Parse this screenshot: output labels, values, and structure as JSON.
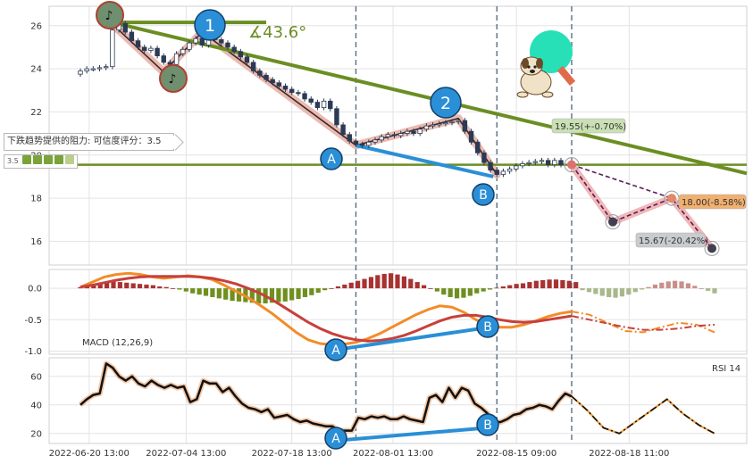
{
  "chart_data": [
    {
      "panel": "price",
      "type": "candlestick",
      "x_labels": [
        "2022-06-20 13:00",
        "2022-07-04 13:00",
        "2022-07-18 13:00",
        "2022-08-01 13:00",
        "2022-08-15 09:00",
        "2022-08-18 11:00"
      ],
      "yticks": [
        16,
        18,
        20,
        22,
        24,
        26
      ],
      "ylim": [
        14.9,
        26.9
      ],
      "close": [
        23.9,
        24.0,
        24.0,
        24.05,
        24.1,
        25.8,
        26.1,
        25.7,
        25.3,
        25.0,
        24.85,
        24.95,
        24.6,
        24.3,
        24.2,
        24.7,
        24.9,
        25.2,
        25.4,
        25.1,
        25.55,
        25.35,
        25.2,
        25.0,
        24.8,
        24.55,
        24.3,
        23.9,
        23.7,
        23.5,
        23.35,
        23.2,
        23.05,
        22.9,
        22.85,
        22.6,
        22.45,
        22.2,
        22.5,
        22.15,
        21.4,
        20.95,
        20.65,
        20.5,
        20.45,
        20.6,
        20.7,
        20.85,
        20.95,
        20.9,
        21.0,
        21.1,
        21.0,
        21.2,
        21.35,
        21.4,
        21.45,
        21.5,
        21.55,
        21.6,
        21.1,
        20.6,
        20.1,
        19.65,
        19.3,
        19.1,
        19.25,
        19.35,
        19.5,
        19.6,
        19.65,
        19.7,
        19.75,
        19.55,
        19.75,
        19.55
      ],
      "annotations": [
        {
          "label": "1",
          "kind": "pivot-high"
        },
        {
          "label": "2",
          "kind": "pivot-high"
        },
        {
          "label": "A",
          "kind": "divergence-point"
        },
        {
          "label": "B",
          "kind": "divergence-point"
        },
        {
          "label": "∡43.6°",
          "kind": "trend-angle"
        }
      ],
      "forecast_points": [
        {
          "label": "19.55(+-0.70%)",
          "value": 19.55
        },
        {
          "label": "18.00(-8.58%)",
          "value": 18.0
        },
        {
          "label": "15.67(-20.42%)",
          "value": 15.67
        }
      ],
      "resistance_note": "下跌趋势提供的阻力: 可信度评分：3.5",
      "rating_value": "3.5"
    },
    {
      "panel": "macd",
      "type": "bar+line",
      "legend": "MACD (12,26,9)",
      "yticks": [
        0.0,
        -0.5,
        -1.0
      ],
      "ylim": [
        -1.05,
        0.3
      ],
      "histogram": [
        0.02,
        0.04,
        0.07,
        0.09,
        0.1,
        0.11,
        0.1,
        0.09,
        0.08,
        0.07,
        0.06,
        0.05,
        0.03,
        0.02,
        0.0,
        -0.02,
        -0.05,
        -0.08,
        -0.1,
        -0.12,
        -0.14,
        -0.16,
        -0.18,
        -0.2,
        -0.21,
        -0.22,
        -0.23,
        -0.24,
        -0.24,
        -0.23,
        -0.22,
        -0.21,
        -0.19,
        -0.17,
        -0.14,
        -0.11,
        -0.07,
        -0.03,
        0.0,
        0.03,
        0.06,
        0.09,
        0.12,
        0.15,
        0.18,
        0.21,
        0.23,
        0.24,
        0.22,
        0.19,
        0.15,
        0.1,
        0.05,
        0.0,
        -0.05,
        -0.1,
        -0.14,
        -0.16,
        -0.15,
        -0.12,
        -0.08,
        -0.05,
        -0.02,
        0.01,
        0.03,
        0.05,
        0.07,
        0.08,
        0.1,
        0.12,
        0.13,
        0.14,
        0.14,
        0.13,
        0.12,
        0.1
      ],
      "macd": [
        0.02,
        0.1,
        0.18,
        0.22,
        0.24,
        0.22,
        0.18,
        0.16,
        0.18,
        0.2,
        0.18,
        0.14,
        0.05,
        -0.05,
        -0.15,
        -0.27,
        -0.4,
        -0.55,
        -0.7,
        -0.82,
        -0.88,
        -0.9,
        -0.89,
        -0.86,
        -0.8,
        -0.72,
        -0.62,
        -0.52,
        -0.42,
        -0.34,
        -0.28,
        -0.3,
        -0.38,
        -0.5,
        -0.58,
        -0.62,
        -0.62,
        -0.58,
        -0.52,
        -0.45,
        -0.4,
        -0.37
      ],
      "signal": [
        0.02,
        0.05,
        0.09,
        0.13,
        0.16,
        0.18,
        0.19,
        0.19,
        0.19,
        0.19,
        0.18,
        0.16,
        0.12,
        0.07,
        0.0,
        -0.08,
        -0.18,
        -0.3,
        -0.42,
        -0.54,
        -0.64,
        -0.72,
        -0.78,
        -0.82,
        -0.84,
        -0.83,
        -0.8,
        -0.75,
        -0.68,
        -0.6,
        -0.52,
        -0.46,
        -0.43,
        -0.43,
        -0.46,
        -0.5,
        -0.53,
        -0.54,
        -0.53,
        -0.5,
        -0.47,
        -0.44
      ],
      "forecast_macd": [
        -0.37,
        -0.42,
        -0.55,
        -0.68,
        -0.7,
        -0.62,
        -0.55,
        -0.58,
        -0.7
      ],
      "forecast_signal": [
        -0.44,
        -0.5,
        -0.56,
        -0.62,
        -0.66,
        -0.66,
        -0.64,
        -0.6,
        -0.58
      ],
      "forecast_histogram": [
        -0.03,
        -0.06,
        -0.09,
        -0.12,
        -0.14,
        -0.15,
        -0.13,
        -0.1,
        -0.06,
        -0.02,
        0.02,
        0.06,
        0.09,
        0.11,
        0.12,
        0.11,
        0.08,
        0.04,
        0.0,
        -0.04,
        -0.08
      ]
    },
    {
      "panel": "rsi",
      "type": "line",
      "legend": "RSI 14",
      "yticks": [
        20,
        40,
        60
      ],
      "ylim": [
        13,
        73
      ],
      "values": [
        40,
        44,
        47,
        48,
        69,
        66,
        60,
        57,
        60,
        55,
        53,
        57,
        54,
        52,
        54,
        52,
        53,
        42,
        44,
        57,
        55,
        55,
        49,
        52,
        46,
        41,
        38,
        37,
        35,
        37,
        31,
        32,
        33,
        30,
        28,
        29,
        27,
        26,
        25,
        25,
        22,
        22,
        22,
        31,
        30,
        32,
        31,
        32,
        30,
        30,
        32,
        30,
        29,
        28,
        45,
        47,
        42,
        52,
        45,
        52,
        50,
        41,
        38,
        34,
        28,
        28,
        30,
        33,
        34,
        37,
        38,
        40,
        39,
        37,
        43,
        48,
        46
      ],
      "forecast": [
        46,
        36,
        24,
        20,
        28,
        36,
        44,
        34,
        26,
        20
      ]
    }
  ]
}
